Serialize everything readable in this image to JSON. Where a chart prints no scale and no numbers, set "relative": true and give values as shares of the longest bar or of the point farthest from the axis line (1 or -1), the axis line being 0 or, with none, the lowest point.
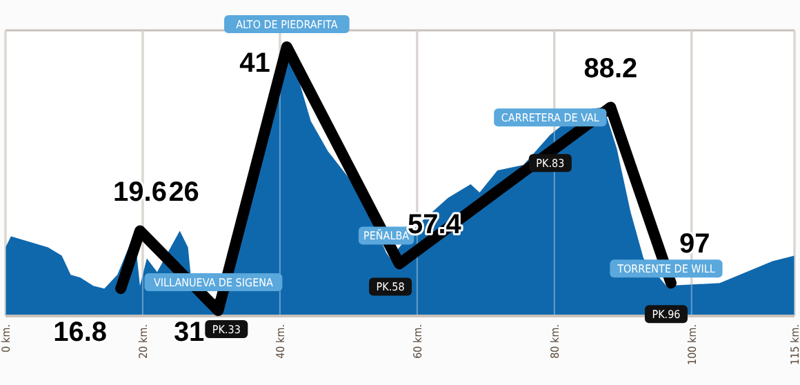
{
  "chart_data": {
    "type": "area",
    "relative": true,
    "grid": "x",
    "xlim": [
      0,
      115
    ],
    "xticks": [
      {
        "value": 0,
        "label": "0 km."
      },
      {
        "value": 20,
        "label": "20 km."
      },
      {
        "value": 40,
        "label": "40 km."
      },
      {
        "value": 60,
        "label": "60 km."
      },
      {
        "value": 80,
        "label": "80 km."
      },
      {
        "value": 100,
        "label": "100 km."
      },
      {
        "value": 115,
        "label": "115 km."
      }
    ],
    "series": [
      {
        "type": "area",
        "color": "#1068ac",
        "x": [
          0,
          0.8,
          6.2,
          8.2,
          9.5,
          10.9,
          12.8,
          14.4,
          16.3,
          18.8,
          19.6,
          20.6,
          22.1,
          25.4,
          26.6,
          27,
          30.3,
          32.2,
          34.8,
          37.3,
          39.2,
          41,
          42.5,
          44.5,
          47,
          51.7,
          55.5,
          56.1,
          60,
          64.5,
          67.8,
          69.1,
          71.7,
          75.5,
          79.4,
          83.9,
          87.2,
          89.1,
          91.1,
          93,
          96.3,
          98.8,
          101.4,
          104.1,
          111.8,
          115
        ],
        "values": [
          0.25,
          0.29,
          0.25,
          0.22,
          0.15,
          0.14,
          0.11,
          0.1,
          0.15,
          0.3,
          0.11,
          0.21,
          0.16,
          0.31,
          0.25,
          0.15,
          0.06,
          0.08,
          0.31,
          0.65,
          0.86,
          1.0,
          0.88,
          0.71,
          0.6,
          0.45,
          0.23,
          0.21,
          0.33,
          0.43,
          0.48,
          0.45,
          0.53,
          0.55,
          0.66,
          0.75,
          0.76,
          0.61,
          0.38,
          0.21,
          0.11,
          null,
          null,
          0.12,
          0.2,
          0.22
        ]
      },
      {
        "type": "line",
        "color": "#000000",
        "x": [
          16.8,
          19.6,
          31,
          41,
          57.4,
          88.2,
          97
        ],
        "values": [
          0.1,
          0.31,
          0.02,
          0.98,
          0.19,
          0.76,
          0.12
        ]
      }
    ],
    "annotations": [
      {
        "text": "16.8",
        "x": 16.8,
        "y": 0.1
      },
      {
        "text": "19.6",
        "x": 19.6,
        "y": 0.31
      },
      {
        "text": "26",
        "x": 26,
        "y": 0.31
      },
      {
        "text": "31",
        "x": 31,
        "y": 0.02
      },
      {
        "text": "41",
        "x": 41,
        "y": 0.98
      },
      {
        "text": "57.4",
        "x": 57.4,
        "y": 0.19
      },
      {
        "text": "88.2",
        "x": 88.2,
        "y": 0.76
      },
      {
        "text": "97",
        "x": 97,
        "y": 0.12
      },
      {
        "text": "ALTO DE PIEDRAFITA",
        "x": 41,
        "y": 1.0
      },
      {
        "text": "VILLANUEVA DE SIGENA",
        "x": 30.3,
        "y": 0.06
      },
      {
        "text": "PEÑALBA",
        "x": 55.5,
        "y": 0.23
      },
      {
        "text": "CARRETERA DE VAL",
        "x": 79.4,
        "y": 0.66
      },
      {
        "text": "TORRENTE DE WILL",
        "x": 96.3,
        "y": 0.11
      },
      {
        "text": "PK.33",
        "x": 32.2,
        "y": 0
      },
      {
        "text": "PK.58",
        "x": 56.1,
        "y": 0.21
      },
      {
        "text": "PK.83",
        "x": 79.4,
        "y": 0.66
      },
      {
        "text": "PK.96",
        "x": 96.3,
        "y": 0.11
      }
    ]
  }
}
